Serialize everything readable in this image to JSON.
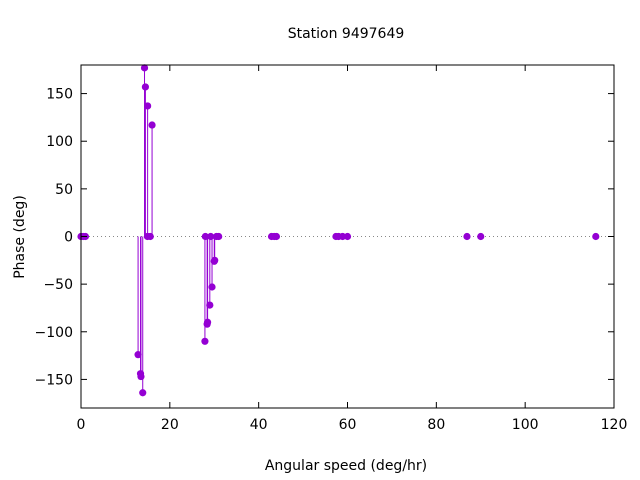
{
  "chart_data": {
    "type": "scatter",
    "title": "Station 9497649",
    "xlabel": "Angular speed (deg/hr)",
    "ylabel": "Phase (deg)",
    "xlim": [
      0,
      120
    ],
    "ylim": [
      -180,
      180
    ],
    "x_ticks": [
      0,
      20,
      40,
      60,
      80,
      100,
      120
    ],
    "y_ticks": [
      -150,
      -100,
      -50,
      0,
      50,
      100,
      150
    ],
    "zero_line": "dotted",
    "marker_color": "#9400d3",
    "impulses": true,
    "points": [
      {
        "x": 0.0,
        "y": 0
      },
      {
        "x": 0.5,
        "y": 0
      },
      {
        "x": 1.0,
        "y": 0
      },
      {
        "x": 12.85,
        "y": -124
      },
      {
        "x": 13.4,
        "y": -144
      },
      {
        "x": 13.5,
        "y": -147
      },
      {
        "x": 13.9,
        "y": -164
      },
      {
        "x": 14.3,
        "y": 177
      },
      {
        "x": 14.5,
        "y": 157
      },
      {
        "x": 14.96,
        "y": 0
      },
      {
        "x": 15.0,
        "y": 137
      },
      {
        "x": 15.6,
        "y": 0
      },
      {
        "x": 16.0,
        "y": 117
      },
      {
        "x": 27.9,
        "y": -110
      },
      {
        "x": 28.0,
        "y": 0
      },
      {
        "x": 28.4,
        "y": -92
      },
      {
        "x": 28.5,
        "y": -90
      },
      {
        "x": 29.0,
        "y": -72
      },
      {
        "x": 29.2,
        "y": 0
      },
      {
        "x": 29.5,
        "y": -53
      },
      {
        "x": 30.0,
        "y": -26
      },
      {
        "x": 30.1,
        "y": -25
      },
      {
        "x": 30.5,
        "y": 0
      },
      {
        "x": 31.0,
        "y": 0
      },
      {
        "x": 42.9,
        "y": 0
      },
      {
        "x": 43.5,
        "y": 0
      },
      {
        "x": 44.0,
        "y": 0
      },
      {
        "x": 57.4,
        "y": 0
      },
      {
        "x": 58.0,
        "y": 0
      },
      {
        "x": 58.9,
        "y": 0
      },
      {
        "x": 60.0,
        "y": 0
      },
      {
        "x": 86.9,
        "y": 0
      },
      {
        "x": 90.0,
        "y": 0
      },
      {
        "x": 115.9,
        "y": 0
      }
    ]
  }
}
